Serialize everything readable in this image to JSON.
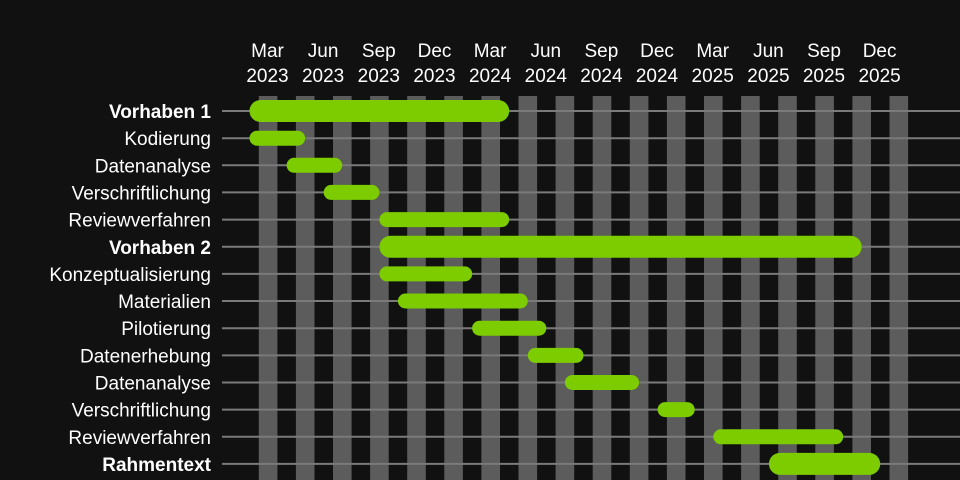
{
  "colors": {
    "background": "#111111",
    "bar": "#7ccc00",
    "month_stripe": "#5c5c5c",
    "row_line": "#7a7a7a",
    "text": "#ffffff"
  },
  "chart_data": {
    "type": "gantt",
    "title": "",
    "grid": true,
    "x_axis": {
      "position": "top",
      "range": [
        "2023-02",
        "2026-01"
      ],
      "ticks": [
        {
          "month": "2023-03",
          "line1": "Mar",
          "line2": "2023"
        },
        {
          "month": "2023-06",
          "line1": "Jun",
          "line2": "2023"
        },
        {
          "month": "2023-09",
          "line1": "Sep",
          "line2": "2023"
        },
        {
          "month": "2023-12",
          "line1": "Dec",
          "line2": "2023"
        },
        {
          "month": "2024-03",
          "line1": "Mar",
          "line2": "2024"
        },
        {
          "month": "2024-06",
          "line1": "Jun",
          "line2": "2024"
        },
        {
          "month": "2024-09",
          "line1": "Sep",
          "line2": "2024"
        },
        {
          "month": "2024-12",
          "line1": "Dec",
          "line2": "2024"
        },
        {
          "month": "2025-03",
          "line1": "Mar",
          "line2": "2025"
        },
        {
          "month": "2025-06",
          "line1": "Jun",
          "line2": "2025"
        },
        {
          "month": "2025-09",
          "line1": "Sep",
          "line2": "2025"
        },
        {
          "month": "2025-12",
          "line1": "Dec",
          "line2": "2025"
        }
      ]
    },
    "tasks": [
      {
        "label": "Vorhaben 1",
        "bold": true,
        "start": "2023-03",
        "end": "2024-05"
      },
      {
        "label": "Kodierung",
        "bold": false,
        "start": "2023-03",
        "end": "2023-06"
      },
      {
        "label": "Datenanalyse",
        "bold": false,
        "start": "2023-05",
        "end": "2023-08"
      },
      {
        "label": "Verschriftlichung",
        "bold": false,
        "start": "2023-07",
        "end": "2023-10"
      },
      {
        "label": "Reviewverfahren",
        "bold": false,
        "start": "2023-10",
        "end": "2024-05"
      },
      {
        "label": "Vorhaben 2",
        "bold": true,
        "start": "2023-10",
        "end": "2025-12"
      },
      {
        "label": "Konzeptualisierung",
        "bold": false,
        "start": "2023-10",
        "end": "2024-03"
      },
      {
        "label": "Materialien",
        "bold": false,
        "start": "2023-11",
        "end": "2024-06"
      },
      {
        "label": "Pilotierung",
        "bold": false,
        "start": "2024-03",
        "end": "2024-07"
      },
      {
        "label": "Datenerhebung",
        "bold": false,
        "start": "2024-06",
        "end": "2024-09"
      },
      {
        "label": "Datenanalyse",
        "bold": false,
        "start": "2024-08",
        "end": "2024-12"
      },
      {
        "label": "Verschriftlichung",
        "bold": false,
        "start": "2025-01",
        "end": "2025-03"
      },
      {
        "label": "Reviewverfahren",
        "bold": false,
        "start": "2025-04",
        "end": "2025-11"
      },
      {
        "label": "Rahmentext",
        "bold": true,
        "start": "2025-07",
        "end": "2026-01"
      }
    ]
  }
}
